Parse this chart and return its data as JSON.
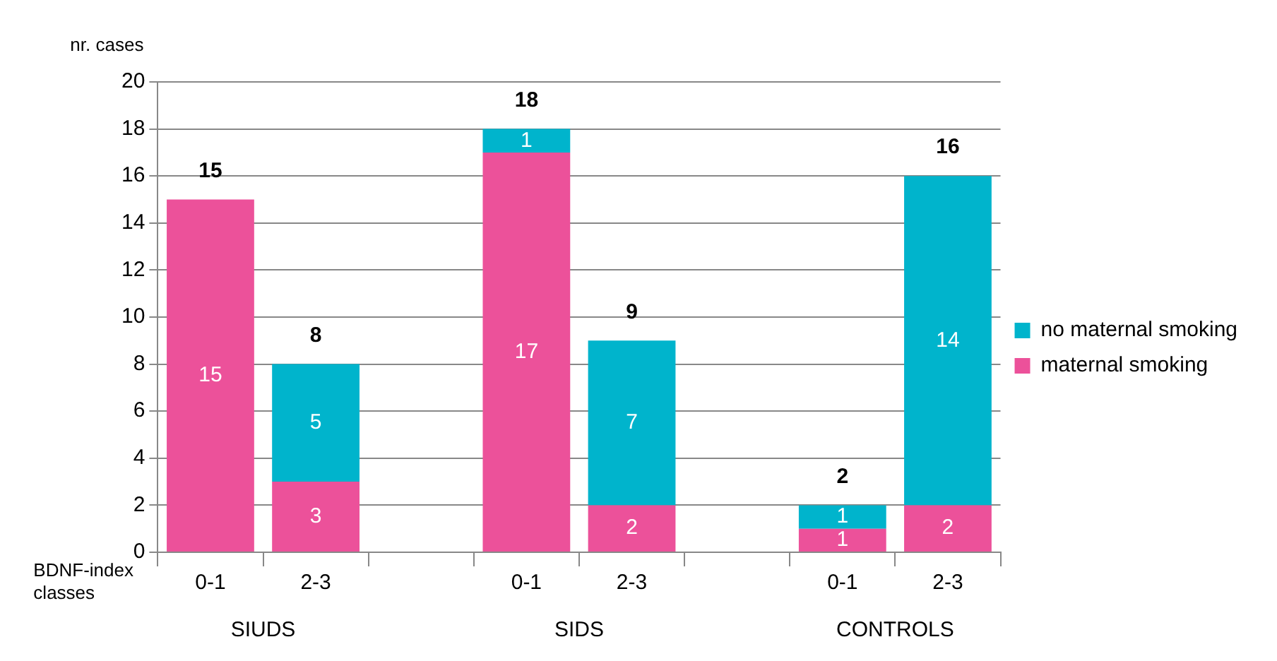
{
  "chart_data": {
    "type": "bar",
    "stacked": true,
    "ylabel": "nr. cases",
    "xlabel": "BDNF-index classes",
    "categories": [
      "0-1",
      "2-3",
      null,
      "0-1",
      "2-3",
      null,
      "0-1",
      "2-3"
    ],
    "series": [
      {
        "name": "maternal smoking",
        "color": "#ec519a",
        "values": [
          15,
          3,
          null,
          17,
          2,
          null,
          1,
          2
        ],
        "value_labels": [
          "15",
          "3",
          null,
          "17",
          "2",
          null,
          "1",
          "2"
        ]
      },
      {
        "name": "no maternal smoking",
        "color": "#00b4cc",
        "values": [
          0,
          5,
          null,
          1,
          7,
          null,
          1,
          14
        ],
        "value_labels": [
          null,
          "5",
          null,
          "1",
          "7",
          null,
          "1",
          "14"
        ]
      }
    ],
    "totals": [
      "15",
      "8",
      null,
      "18",
      "9",
      null,
      "2",
      "16"
    ],
    "annotations": [
      "SIUDS",
      "SIDS",
      "CONTROLS"
    ],
    "ylim": [
      0,
      20
    ],
    "yticks": [
      0,
      2,
      4,
      6,
      8,
      10,
      12,
      14,
      16,
      18,
      20
    ],
    "grid": "y",
    "legend": "right"
  }
}
